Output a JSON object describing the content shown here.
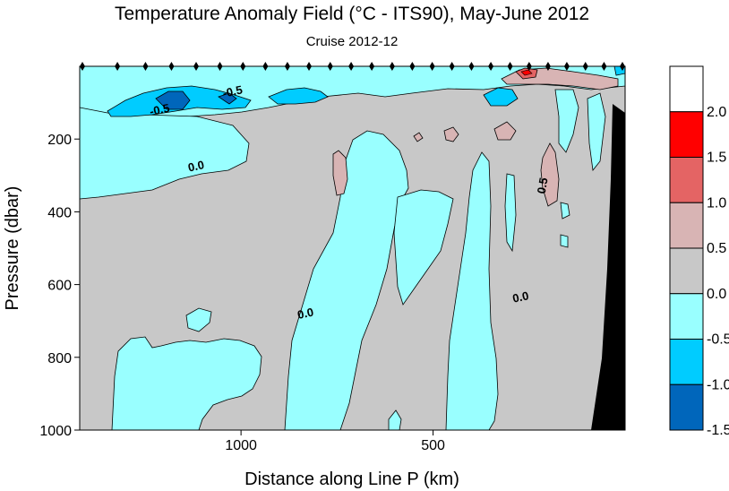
{
  "chart_data": {
    "type": "heatmap",
    "title": "Temperature Anomaly Field  (°C - ITS90),  May-June 2012",
    "subtitle": "Cruise 2012-12",
    "xlabel": "Distance along Line P  (km)",
    "ylabel": "Pressure  (dbar)",
    "x_reversed": true,
    "xlim": [
      1420,
      0
    ],
    "ylim": [
      1000,
      0
    ],
    "xticks": [
      {
        "value": 1000,
        "label": "1000"
      },
      {
        "value": 500,
        "label": "500"
      }
    ],
    "yticks": [
      {
        "value": 200,
        "label": "200"
      },
      {
        "value": 400,
        "label": "400"
      },
      {
        "value": 600,
        "label": "600"
      },
      {
        "value": 800,
        "label": "800"
      },
      {
        "value": 1000,
        "label": "1000"
      }
    ],
    "colorbar": {
      "labels": [
        "2.0",
        "1.5",
        "1.0",
        "0.5",
        "0.0",
        "-0.5",
        "-1.0",
        "-1.5"
      ],
      "bins": [
        {
          "min": 2.0,
          "max": 2.5,
          "color": "#ffffff"
        },
        {
          "min": 1.5,
          "max": 2.0,
          "color": "#ff0000"
        },
        {
          "min": 1.0,
          "max": 1.5,
          "color": "#e46464"
        },
        {
          "min": 0.5,
          "max": 1.0,
          "color": "#d8b4b4"
        },
        {
          "min": 0.0,
          "max": 0.5,
          "color": "#c8c8c8"
        },
        {
          "min": -0.5,
          "max": 0.0,
          "color": "#99ffff"
        },
        {
          "min": -1.0,
          "max": -0.5,
          "color": "#00ccff"
        },
        {
          "min": -1.5,
          "max": -1.0,
          "color": "#0066bb"
        }
      ]
    },
    "contour_labels": [
      {
        "text": "-0.5",
        "x": 1210,
        "y": 130
      },
      {
        "text": "-0.5",
        "x": 1020,
        "y": 80
      },
      {
        "text": "0.0",
        "x": 1115,
        "y": 285
      },
      {
        "text": "0.0",
        "x": 830,
        "y": 690
      },
      {
        "text": "0.0",
        "x": 270,
        "y": 645
      },
      {
        "text": "0.5",
        "x": 205,
        "y": 330
      }
    ],
    "station_count": 26,
    "background_value": "0.0 to 0.5",
    "bathymetry_color": "#000000"
  }
}
